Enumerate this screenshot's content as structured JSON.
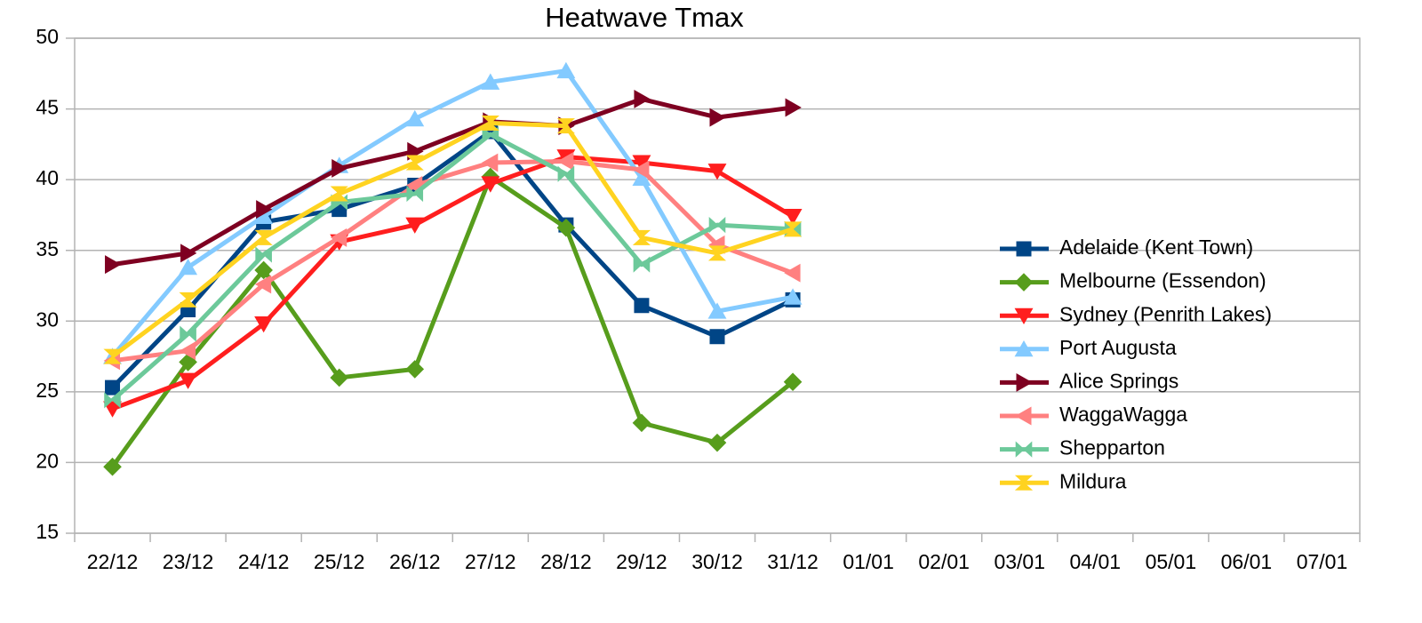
{
  "chart_data": {
    "type": "line",
    "title": "Heatwave Tmax",
    "categories": [
      "22/12",
      "23/12",
      "24/12",
      "25/12",
      "26/12",
      "27/12",
      "28/12",
      "29/12",
      "30/12",
      "31/12",
      "01/01",
      "02/01",
      "03/01",
      "04/01",
      "05/01",
      "06/01",
      "07/01"
    ],
    "ylim": [
      15,
      50
    ],
    "yticks": [
      15,
      20,
      25,
      30,
      35,
      40,
      45,
      50
    ],
    "grid": true,
    "legend": "right",
    "series": [
      {
        "name": "Adelaide (Kent Town)",
        "color": "#004586",
        "marker": "square",
        "values": [
          25.3,
          30.8,
          37.0,
          37.9,
          39.6,
          43.4,
          36.8,
          31.1,
          28.9,
          31.5,
          null,
          null,
          null,
          null,
          null,
          null,
          null
        ]
      },
      {
        "name": "Melbourne (Essendon)",
        "color": "#579d1c",
        "marker": "diamond",
        "values": [
          19.7,
          27.1,
          33.6,
          26.0,
          26.6,
          40.2,
          36.6,
          22.8,
          21.4,
          25.7,
          null,
          null,
          null,
          null,
          null,
          null,
          null
        ]
      },
      {
        "name": "Sydney (Penrith Lakes)",
        "color": "#ff1e1e",
        "marker": "triangle-down",
        "values": [
          23.8,
          25.8,
          29.8,
          35.6,
          36.8,
          39.7,
          41.6,
          41.2,
          40.6,
          37.4,
          null,
          null,
          null,
          null,
          null,
          null,
          null
        ]
      },
      {
        "name": "Port Augusta",
        "color": "#83caff",
        "marker": "triangle-up",
        "values": [
          27.5,
          33.8,
          37.4,
          41.0,
          44.3,
          46.9,
          47.7,
          40.1,
          30.7,
          31.7,
          null,
          null,
          null,
          null,
          null,
          null,
          null
        ]
      },
      {
        "name": "Alice Springs",
        "color": "#7e0021",
        "marker": "triangle-right",
        "values": [
          34.0,
          34.8,
          37.9,
          40.8,
          42.0,
          44.1,
          43.8,
          45.7,
          44.4,
          45.1,
          null,
          null,
          null,
          null,
          null,
          null,
          null
        ]
      },
      {
        "name": "WaggaWagga",
        "color": "#ff8080",
        "marker": "triangle-left",
        "values": [
          27.2,
          27.9,
          32.6,
          35.9,
          39.6,
          41.2,
          41.3,
          40.7,
          35.4,
          33.4,
          null,
          null,
          null,
          null,
          null,
          null,
          null
        ]
      },
      {
        "name": "Shepparton",
        "color": "#6cc99a",
        "marker": "bowtie",
        "values": [
          24.4,
          29.1,
          34.7,
          38.4,
          39.0,
          43.2,
          40.4,
          34.0,
          36.8,
          36.5,
          null,
          null,
          null,
          null,
          null,
          null,
          null
        ]
      },
      {
        "name": "Mildura",
        "color": "#ffd320",
        "marker": "hourglass",
        "values": [
          27.5,
          31.5,
          35.9,
          39.0,
          41.2,
          44.0,
          43.8,
          35.9,
          34.8,
          36.5,
          null,
          null,
          null,
          null,
          null,
          null,
          null
        ]
      }
    ]
  }
}
